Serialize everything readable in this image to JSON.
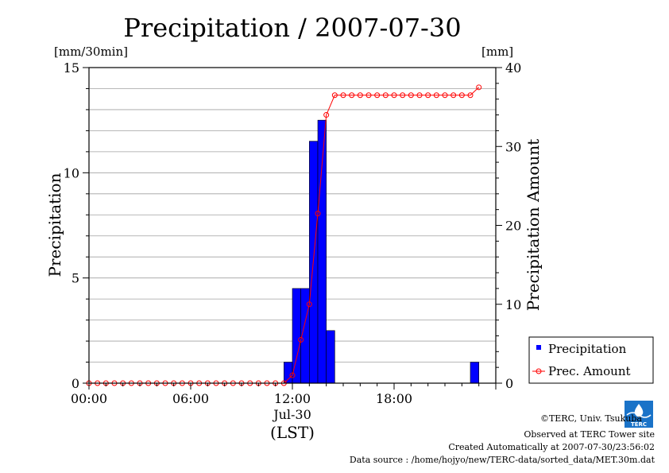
{
  "chart_data": {
    "type": "bar",
    "title": "Precipitation / 2007-07-30",
    "ylabel": "Precipitation",
    "y2label": "Precipitation Amount",
    "yunit": "[mm/30min]",
    "y2unit": "[mm]",
    "ylim": [
      0,
      15
    ],
    "y2lim": [
      0,
      40
    ],
    "yticks": [
      "0",
      "5",
      "10",
      "15"
    ],
    "y2ticks": [
      "0",
      "10",
      "20",
      "30",
      "40"
    ],
    "xlim_hours": [
      0,
      24
    ],
    "xticks": [
      {
        "hour": 0,
        "label": "00:00"
      },
      {
        "hour": 6,
        "label": "06:00"
      },
      {
        "hour": 12,
        "label": "12:00"
      },
      {
        "hour": 18,
        "label": "18:00"
      }
    ],
    "xsublabel": "Jul-30",
    "xunit": "(LST)",
    "grid": true,
    "legend_position": "right",
    "series": [
      {
        "name": "Precipitation",
        "kind": "bar",
        "color": "#0000ff",
        "bars": [
          {
            "start_hour": 11.5,
            "value": 1.0
          },
          {
            "start_hour": 12.0,
            "value": 4.5
          },
          {
            "start_hour": 12.5,
            "value": 4.5
          },
          {
            "start_hour": 13.0,
            "value": 11.5
          },
          {
            "start_hour": 13.5,
            "value": 12.5
          },
          {
            "start_hour": 14.0,
            "value": 2.5
          },
          {
            "start_hour": 22.5,
            "value": 1.0
          }
        ]
      },
      {
        "name": "Prec. Amount",
        "kind": "line",
        "axis": "right",
        "color": "#ff0000",
        "x_hours": [
          0.0,
          0.5,
          1.0,
          1.5,
          2.0,
          2.5,
          3.0,
          3.5,
          4.0,
          4.5,
          5.0,
          5.5,
          6.0,
          6.5,
          7.0,
          7.5,
          8.0,
          8.5,
          9.0,
          9.5,
          10.0,
          10.5,
          11.0,
          11.5,
          12.0,
          12.5,
          13.0,
          13.5,
          14.0,
          14.5,
          15.0,
          15.5,
          16.0,
          16.5,
          17.0,
          17.5,
          18.0,
          18.5,
          19.0,
          19.5,
          20.0,
          20.5,
          21.0,
          21.5,
          22.0,
          22.5,
          23.0
        ],
        "values": [
          0,
          0,
          0,
          0,
          0,
          0,
          0,
          0,
          0,
          0,
          0,
          0,
          0,
          0,
          0,
          0,
          0,
          0,
          0,
          0,
          0,
          0,
          0,
          0,
          1,
          5.5,
          10,
          21.5,
          34,
          36.5,
          36.5,
          36.5,
          36.5,
          36.5,
          36.5,
          36.5,
          36.5,
          36.5,
          36.5,
          36.5,
          36.5,
          36.5,
          36.5,
          36.5,
          36.5,
          36.5,
          37.5
        ]
      }
    ]
  },
  "footer": {
    "copyright": "©TERC, Univ. Tsukuba",
    "observed": "Observed at TERC Tower site",
    "created": "Created Automatically at 2007-07-30/23:56:02",
    "source": "Data source : /home/hojyo/new/TERC-data/sorted_data/MET.30m.dat",
    "logo_text": "TERC"
  }
}
